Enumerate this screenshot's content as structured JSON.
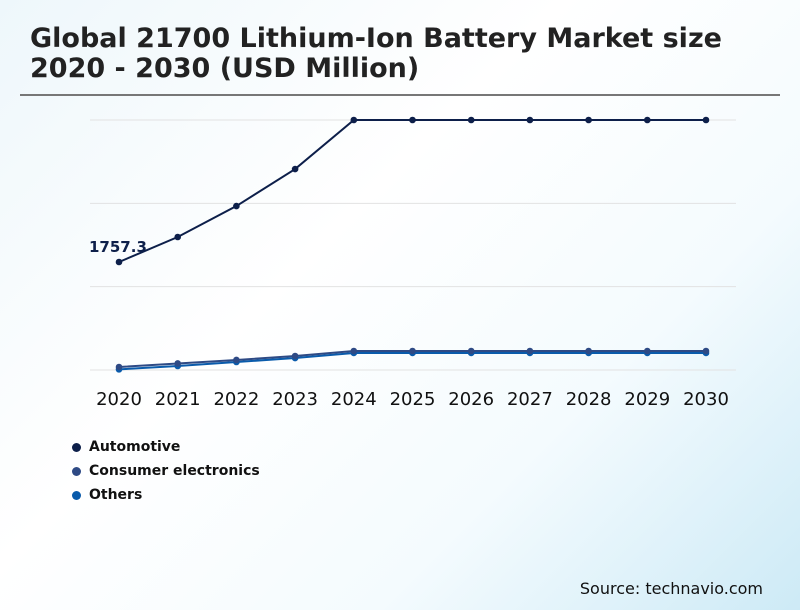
{
  "chart_data": {
    "type": "line",
    "title": "Global 21700 Lithium-Ion Battery Market size 2020 - 2030 (USD Million)",
    "x": [
      "2020",
      "2021",
      "2022",
      "2023",
      "2024",
      "2025",
      "2026",
      "2027",
      "2028",
      "2029",
      "2030"
    ],
    "series": [
      {
        "name": "Automotive",
        "color": "#0d1f4a",
        "values": [
          1757.3,
          2164,
          2668,
          3270,
          4068,
          4068,
          4068,
          4068,
          4068,
          4068,
          4068
        ]
      },
      {
        "name": "Consumer electronics",
        "color": "#2e4a85",
        "values": [
          49,
          106,
          163,
          228,
          309,
          309,
          309,
          309,
          309,
          309,
          309
        ]
      },
      {
        "name": "Others",
        "color": "#0a5bab",
        "values": [
          10,
          65,
          130,
          195,
          277,
          277,
          277,
          277,
          277,
          277,
          277
        ]
      }
    ],
    "data_labels": [
      {
        "series": "Automotive",
        "x": "2020",
        "text": "1757.3"
      }
    ],
    "ylim": [
      0,
      4068
    ],
    "grid": true,
    "legend": "bottom-left",
    "xlabel": "",
    "ylabel": ""
  },
  "source": "Source: technavio.com"
}
